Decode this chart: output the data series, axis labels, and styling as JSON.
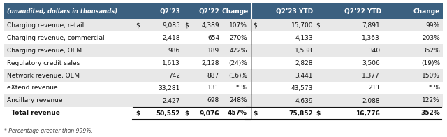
{
  "header": [
    "(unaudited, dollars in thousands)",
    "Q2’23",
    "Q2’22",
    "Change",
    "Q2’23 YTD",
    "Q2’22 YTD",
    "Change"
  ],
  "rows": [
    [
      "Charging revenue, retail",
      "$",
      "9,085",
      "$",
      "4,389",
      "107%",
      "$",
      "15,700",
      "$",
      "7,891",
      "99%"
    ],
    [
      "Charging revenue, commercial",
      "",
      "2,418",
      "",
      "654",
      "270%",
      "",
      "4,133",
      "",
      "1,363",
      "203%"
    ],
    [
      "Charging revenue, OEM",
      "",
      "986",
      "",
      "189",
      "422%",
      "",
      "1,538",
      "",
      "340",
      "352%"
    ],
    [
      "Regulatory credit sales",
      "",
      "1,613",
      "",
      "2,128",
      "(24)%",
      "",
      "2,828",
      "",
      "3,506",
      "(19)%"
    ],
    [
      "Network revenue, OEM",
      "",
      "742",
      "",
      "887",
      "(16)%",
      "",
      "3,441",
      "",
      "1,377",
      "150%"
    ],
    [
      "eXtend revenue",
      "",
      "33,281",
      "",
      "131",
      "* %",
      "",
      "43,573",
      "",
      "211",
      "* %"
    ],
    [
      "Ancillary revenue",
      "",
      "2,427",
      "",
      "698",
      "248%",
      "",
      "4,639",
      "",
      "2,088",
      "122%"
    ],
    [
      "  Total revenue",
      "$",
      "50,552",
      "$",
      "9,076",
      "457%",
      "$",
      "75,852",
      "$",
      "16,776",
      "352%"
    ]
  ],
  "footer": "* Percentage greater than 999%.",
  "header_bg": "#3b6080",
  "header_fg": "#ffffff",
  "row_colors": [
    "#e8e8e8",
    "#ffffff",
    "#e8e8e8",
    "#ffffff",
    "#e8e8e8",
    "#ffffff",
    "#e8e8e8",
    "#ffffff"
  ],
  "total_row_index": 7,
  "fig_width": 6.4,
  "fig_height": 1.96,
  "dpi": 100
}
